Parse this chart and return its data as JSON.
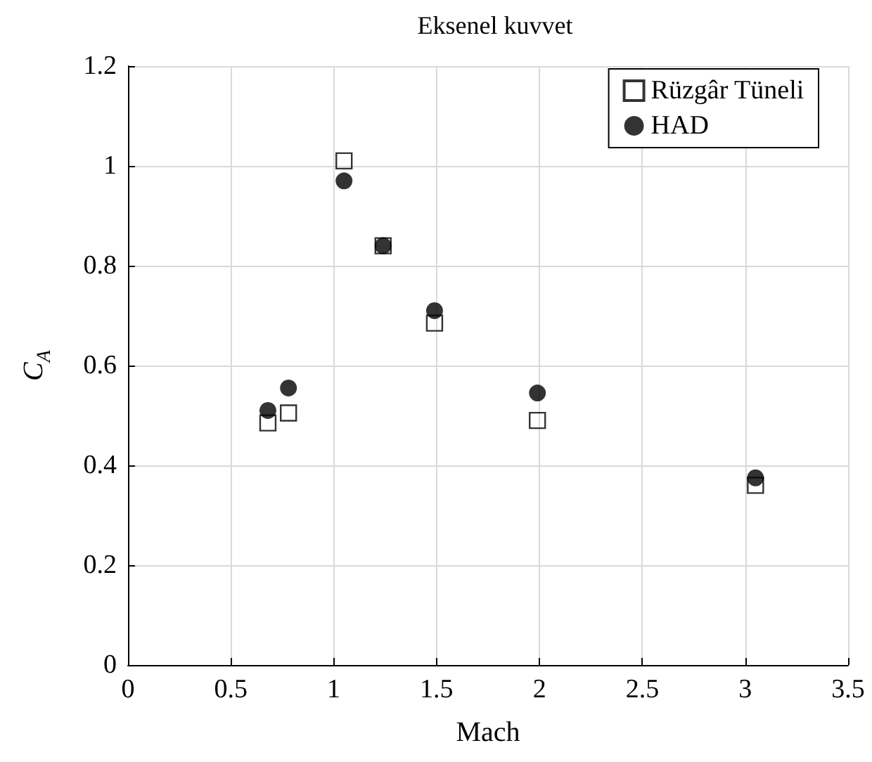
{
  "chart_data": {
    "type": "scatter",
    "title": "Eksenel kuvvet",
    "xlabel": "Mach",
    "ylabel": "C$_{A}$",
    "xlim": [
      0,
      3.5
    ],
    "xticks": [
      0,
      0.5,
      1,
      1.5,
      2,
      2.5,
      3,
      3.5
    ],
    "ylim": [
      0,
      1.2
    ],
    "yticks": [
      0,
      0.2,
      0.4,
      0.6,
      0.8,
      1,
      1.2
    ],
    "grid": true,
    "legend": "top right",
    "series": [
      {
        "name": "Rüzgâr Tüneli",
        "color": "#000000",
        "marker": "square",
        "x": [
          0.68,
          0.78,
          1.05,
          1.24,
          1.49,
          1.99,
          3.05
        ],
        "values": [
          0.485,
          0.505,
          1.01,
          0.84,
          0.685,
          0.49,
          0.36
        ]
      },
      {
        "name": "HAD",
        "color": "#000000",
        "marker": "circle",
        "x": [
          0.68,
          0.78,
          1.05,
          1.24,
          1.49,
          1.99,
          3.05
        ],
        "values": [
          0.51,
          0.555,
          0.97,
          0.84,
          0.71,
          0.545,
          0.375
        ]
      }
    ]
  }
}
